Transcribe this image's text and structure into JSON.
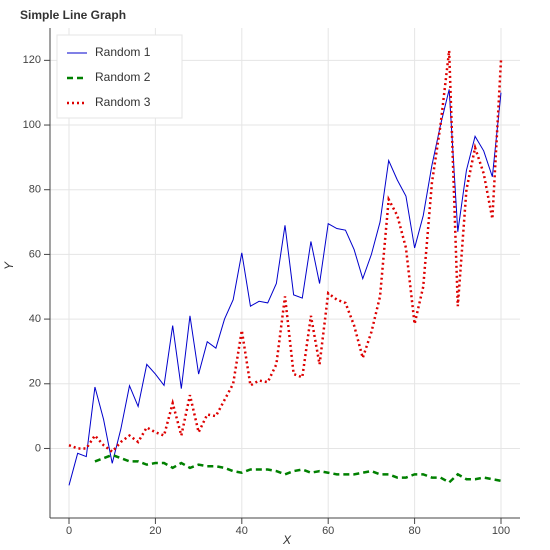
{
  "chart_data": {
    "type": "line",
    "title": "Simple Line Graph",
    "x_label": "X",
    "y_label": "Y",
    "x": [
      0,
      2,
      4,
      6,
      8,
      10,
      12,
      14,
      16,
      18,
      20,
      22,
      24,
      26,
      28,
      30,
      32,
      34,
      36,
      38,
      40,
      42,
      44,
      46,
      48,
      50,
      52,
      54,
      56,
      58,
      60,
      62,
      64,
      66,
      68,
      70,
      72,
      74,
      76,
      78,
      80,
      82,
      84,
      86,
      88,
      90,
      92,
      94,
      96,
      98,
      100
    ],
    "series": [
      {
        "name": "Random 1",
        "color": "#0000cc",
        "dash": "solid",
        "values": [
          -11.4,
          -1.5,
          -2.5,
          19,
          9,
          -4.6,
          6,
          19.4,
          13,
          26,
          23,
          19.5,
          38,
          18.5,
          41,
          23,
          33,
          31,
          40,
          46,
          60.5,
          44,
          45.5,
          45,
          51,
          69,
          47.5,
          46.5,
          64,
          51,
          69.5,
          68,
          67.5,
          61.5,
          52.5,
          60,
          70,
          89,
          83,
          78,
          62,
          72,
          87.5,
          100,
          111,
          67,
          86,
          96.5,
          92,
          84,
          110
        ]
      },
      {
        "name": "Random 2",
        "color": "#008000",
        "dash": "dashed",
        "values": [
          null,
          null,
          null,
          -4,
          -3,
          -2,
          -3,
          -4,
          -4,
          -5,
          -4.5,
          -4.5,
          -6,
          -4.5,
          -6,
          -5,
          -5.5,
          -5.5,
          -6,
          -7,
          -7.5,
          -6.5,
          -6.5,
          -6.5,
          -7,
          -8,
          -7,
          -6.5,
          -7.5,
          -7,
          -7.5,
          -8,
          -8,
          -8,
          -7.5,
          -7,
          -8,
          -8,
          -9,
          -9,
          -8,
          -8,
          -9,
          -9,
          -10.5,
          -8,
          -9.5,
          -9.5,
          -9,
          -9.5,
          -10
        ]
      },
      {
        "name": "Random 3",
        "color": "#dd0000",
        "dash": "dotted",
        "values": [
          1,
          0,
          0,
          4,
          1,
          -1,
          2,
          4,
          2,
          6.5,
          5,
          4,
          14,
          4,
          16.5,
          5,
          10.5,
          10,
          15,
          20,
          36.5,
          19.5,
          21,
          20.5,
          26,
          47,
          23,
          22,
          41,
          26,
          48,
          46,
          45,
          38,
          28,
          36,
          47,
          77,
          72,
          62,
          38.5,
          50,
          82,
          100,
          123,
          44,
          80,
          93,
          85,
          71,
          120
        ]
      }
    ],
    "xlim": [
      -4.4,
      104.4
    ],
    "ylim": [
      -21.5,
      130
    ],
    "xticks": [
      0,
      20,
      40,
      60,
      80,
      100
    ],
    "yticks": [
      0,
      20,
      40,
      60,
      80,
      100,
      120
    ],
    "grid": true,
    "legend": "top-left"
  }
}
